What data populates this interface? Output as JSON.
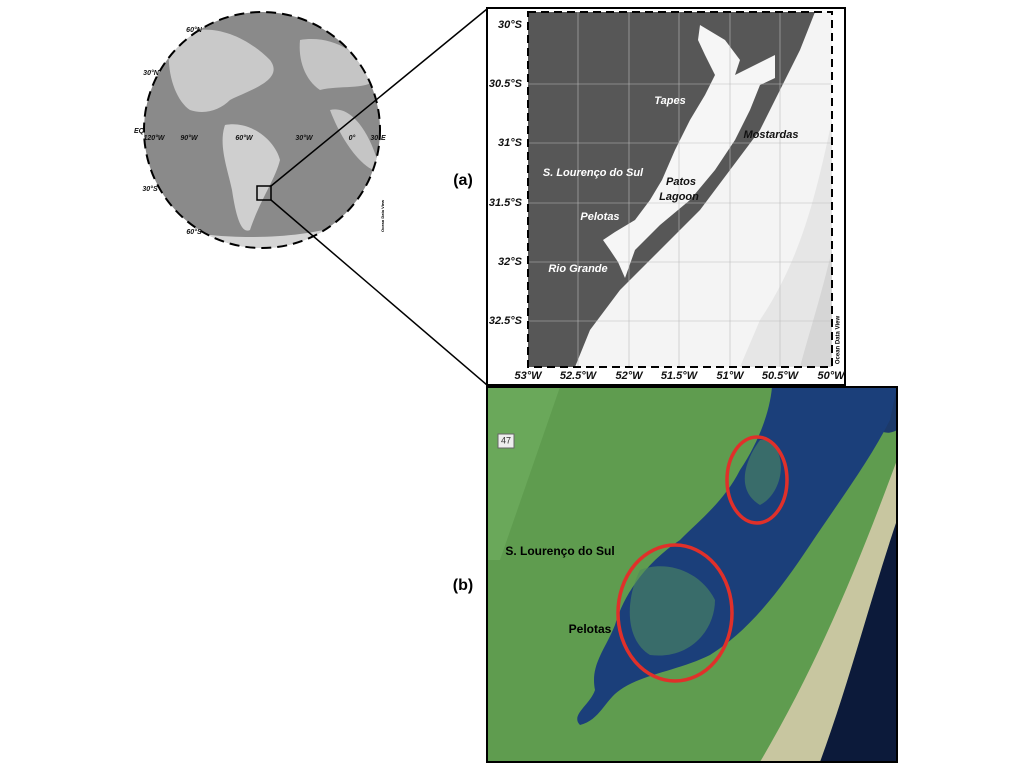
{
  "globe": {
    "lat_labels": [
      "60°N",
      "30°N",
      "EQ",
      "30°S",
      "60°S"
    ],
    "lon_labels": [
      "120°W",
      "90°W",
      "60°W",
      "30°W",
      "0°",
      "30°E"
    ],
    "credit": "Ocean Data View"
  },
  "panel_a": {
    "label": "(a)",
    "lat_labels": [
      "30°S",
      "30.5°S",
      "31°S",
      "31.5°S",
      "32°S",
      "32.5°S"
    ],
    "lon_labels": [
      "53°W",
      "52.5°W",
      "52°W",
      "51.5°W",
      "51°W",
      "50.5°W",
      "50°W"
    ],
    "places": [
      "Tapes",
      "Mostardas",
      "S. Lourenço do Sul",
      "Pelotas",
      "Rio Grande"
    ],
    "lagoon_name": [
      "Patos",
      "Lagoon"
    ],
    "credit": "Ocean Data View"
  },
  "panel_b": {
    "label": "(b)",
    "road_sign": "47",
    "places": [
      "S. Lourenço do Sul",
      "Pelotas"
    ]
  }
}
